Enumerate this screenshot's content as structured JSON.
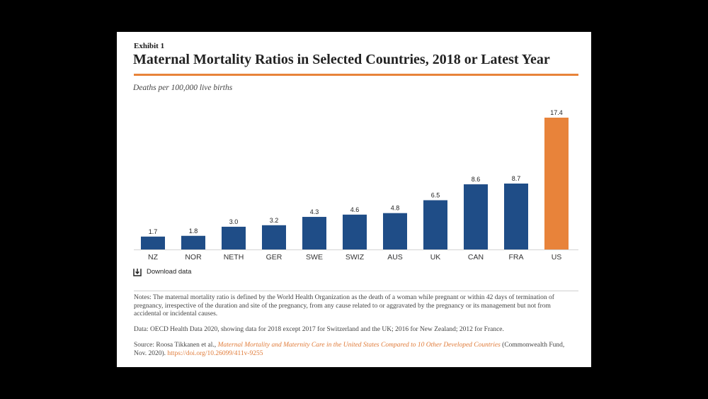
{
  "header": {
    "exhibit_label": "Exhibit 1"
  },
  "chart_data": {
    "type": "bar",
    "title": "Maternal Mortality Ratios in Selected Countries, 2018 or Latest Year",
    "ylabel": "Deaths per 100,000 live births",
    "categories": [
      "NZ",
      "NOR",
      "NETH",
      "GER",
      "SWE",
      "SWIZ",
      "AUS",
      "UK",
      "CAN",
      "FRA",
      "US"
    ],
    "values": [
      1.7,
      1.8,
      3.0,
      3.2,
      4.3,
      4.6,
      4.8,
      6.5,
      8.6,
      8.7,
      17.4
    ],
    "ylim": [
      0,
      17.4
    ],
    "grid": false,
    "bar_colors": [
      "#1f4d87",
      "#1f4d87",
      "#1f4d87",
      "#1f4d87",
      "#1f4d87",
      "#1f4d87",
      "#1f4d87",
      "#1f4d87",
      "#1f4d87",
      "#1f4d87",
      "#e8833a"
    ]
  },
  "actions": {
    "download_label": "Download data",
    "download_icon": "download-icon"
  },
  "footnotes": {
    "notes": "Notes: The maternal mortality ratio is defined by the World Health Organization as the death of a woman while pregnant or within 42 days of termination of pregnancy, irrespective of the duration and site of the pregnancy, from any cause related to or aggravated by the pregnancy or its management but not from accidental or incidental causes.",
    "data": "Data: OECD Health Data 2020, showing data for 2018 except 2017 for Switzerland and the UK; 2016 for New Zealand; 2012 for France.",
    "source_prefix": "Source: Roosa Tikkanen et al.,",
    "source_title": "Maternal Mortality and Maternity Care in the United States Compared to 10 Other Developed Countries",
    "source_publisher": "(Commonwealth Fund, Nov. 2020).",
    "source_url": "https://doi.org/10.26099/411v-9255"
  },
  "theme": {
    "accent": "#e8833a",
    "link": "#e07b39",
    "text": "#222222"
  }
}
